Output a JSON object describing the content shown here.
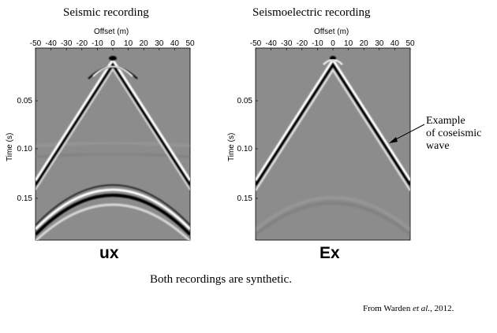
{
  "panels": [
    {
      "title": "Seismic recording",
      "xlabel": "Offset (m)",
      "ylabel": "Time (s)",
      "label": "ux",
      "xticks": [
        "-50",
        "-40",
        "-30",
        "-20",
        "-10",
        "0",
        "10",
        "20",
        "30",
        "40",
        "50"
      ],
      "yticks": [
        "0.05",
        "0.10",
        "0.15"
      ]
    },
    {
      "title": "Seismoelectric recording",
      "xlabel": "Offset (m)",
      "ylabel": "Time (s)",
      "label": "Ex",
      "xticks": [
        "-50",
        "-40",
        "-30",
        "-20",
        "-10",
        "0",
        "10",
        "20",
        "30",
        "40",
        "50"
      ],
      "yticks": [
        "0.05",
        "0.10",
        "0.15"
      ]
    }
  ],
  "annotation": {
    "line1": "Example",
    "line2": "of coseismic",
    "line3": "wave"
  },
  "caption": "Both recordings are synthetic.",
  "credit": {
    "prefix": "From Warden ",
    "etal": "et al.",
    "suffix": ", 2012."
  },
  "colors": {
    "background_gray": "#8c8c8c",
    "wave_light": "#ffffff",
    "wave_dark": "#000000"
  }
}
